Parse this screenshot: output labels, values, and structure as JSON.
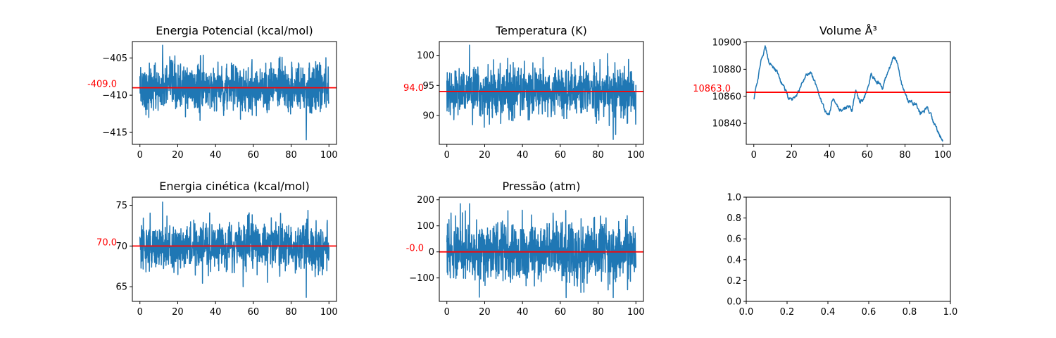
{
  "chart_data": [
    {
      "type": "line",
      "title": "Energia Potencial (kcal/mol)",
      "xlim": [
        -4,
        104
      ],
      "ylim": [
        -416.6,
        -402.8
      ],
      "xticks": [
        0,
        20,
        40,
        60,
        80,
        100
      ],
      "xtick_labels": [
        "0",
        "20",
        "40",
        "60",
        "80",
        "100"
      ],
      "yticks": [
        -405,
        -410,
        -415
      ],
      "ytick_labels": [
        "−405",
        "−410",
        "−415"
      ],
      "mean_line": -409.0,
      "mean_label": "-409.0",
      "series": [
        {
          "color": "#1f77b4",
          "x_range": [
            0,
            100
          ],
          "mean": -409.0,
          "spread": 1.6,
          "min": -416.0,
          "max": -403.3,
          "noise": "fluctuating"
        }
      ]
    },
    {
      "type": "line",
      "title": "Temperatura (K)",
      "xlim": [
        -4,
        104
      ],
      "ylim": [
        85.2,
        102.3
      ],
      "xticks": [
        0,
        20,
        40,
        60,
        80,
        100
      ],
      "xtick_labels": [
        "0",
        "20",
        "40",
        "60",
        "80",
        "100"
      ],
      "yticks": [
        90,
        95,
        100
      ],
      "ytick_labels": [
        "90",
        "95",
        "100"
      ],
      "mean_line": 94.0,
      "mean_label": "94.0",
      "series": [
        {
          "color": "#1f77b4",
          "x_range": [
            0,
            100
          ],
          "mean": 94.0,
          "spread": 2.0,
          "min": 86.0,
          "max": 101.7,
          "noise": "fluctuating"
        }
      ]
    },
    {
      "type": "line",
      "title": "Volume Å³",
      "xlim": [
        -4,
        104
      ],
      "ylim": [
        10824.5,
        10900.5
      ],
      "xticks": [
        0,
        20,
        40,
        60,
        80,
        100
      ],
      "xtick_labels": [
        "0",
        "20",
        "40",
        "60",
        "80",
        "100"
      ],
      "yticks": [
        10840,
        10860,
        10880,
        10900
      ],
      "ytick_labels": [
        "10840",
        "10860",
        "10880",
        "10900"
      ],
      "mean_line": 10863.0,
      "mean_label": "10863.0",
      "series": [
        {
          "color": "#1f77b4",
          "noise": "smooth",
          "anchors": [
            [
              0,
              10857
            ],
            [
              2,
              10872
            ],
            [
              4,
              10888
            ],
            [
              6,
              10896
            ],
            [
              8,
              10885
            ],
            [
              10,
              10882
            ],
            [
              12,
              10879
            ],
            [
              14,
              10872
            ],
            [
              16,
              10866
            ],
            [
              18,
              10860
            ],
            [
              20,
              10857
            ],
            [
              22,
              10860
            ],
            [
              24,
              10864
            ],
            [
              26,
              10872
            ],
            [
              28,
              10876
            ],
            [
              30,
              10878
            ],
            [
              32,
              10872
            ],
            [
              34,
              10863
            ],
            [
              36,
              10855
            ],
            [
              38,
              10848
            ],
            [
              40,
              10847
            ],
            [
              42,
              10860
            ],
            [
              44,
              10853
            ],
            [
              46,
              10849
            ],
            [
              48,
              10851
            ],
            [
              50,
              10853
            ],
            [
              52,
              10850
            ],
            [
              54,
              10864
            ],
            [
              56,
              10857
            ],
            [
              58,
              10856
            ],
            [
              60,
              10865
            ],
            [
              62,
              10876
            ],
            [
              64,
              10872
            ],
            [
              66,
              10870
            ],
            [
              68,
              10866
            ],
            [
              70,
              10875
            ],
            [
              72,
              10882
            ],
            [
              74,
              10889
            ],
            [
              76,
              10885
            ],
            [
              78,
              10870
            ],
            [
              80,
              10862
            ],
            [
              82,
              10856
            ],
            [
              84,
              10855
            ],
            [
              86,
              10853
            ],
            [
              88,
              10847
            ],
            [
              90,
              10849
            ],
            [
              92,
              10852
            ],
            [
              94,
              10845
            ],
            [
              96,
              10838
            ],
            [
              98,
              10832
            ],
            [
              100,
              10827
            ]
          ]
        }
      ]
    },
    {
      "type": "line",
      "title": "Energia cinética (kcal/mol)",
      "xlim": [
        -4,
        104
      ],
      "ylim": [
        63.2,
        76.0
      ],
      "xticks": [
        0,
        20,
        40,
        60,
        80,
        100
      ],
      "xtick_labels": [
        "0",
        "20",
        "40",
        "60",
        "80",
        "100"
      ],
      "yticks": [
        65,
        70,
        75
      ],
      "ytick_labels": [
        "65",
        "70",
        "75"
      ],
      "mean_line": 70.0,
      "mean_label": "70.0",
      "series": [
        {
          "color": "#1f77b4",
          "x_range": [
            0,
            100
          ],
          "mean": 70.0,
          "spread": 1.5,
          "min": 63.7,
          "max": 75.4,
          "noise": "fluctuating"
        }
      ]
    },
    {
      "type": "line",
      "title": "Pressão (atm)",
      "xlim": [
        -4,
        104
      ],
      "ylim": [
        -190,
        210
      ],
      "xticks": [
        0,
        20,
        40,
        60,
        80,
        100
      ],
      "xtick_labels": [
        "0",
        "20",
        "40",
        "60",
        "80",
        "100"
      ],
      "yticks": [
        -100,
        0,
        100,
        200
      ],
      "ytick_labels": [
        "−100",
        "0",
        "100",
        "200"
      ],
      "mean_line": 0.0,
      "mean_label": "-0.0",
      "series": [
        {
          "color": "#1f77b4",
          "x_range": [
            0,
            100
          ],
          "mean": 0.0,
          "spread": 55,
          "min": -175,
          "max": 185,
          "noise": "fluctuating"
        }
      ]
    },
    {
      "type": "line",
      "title": "",
      "xlim": [
        0,
        1
      ],
      "ylim": [
        0,
        1
      ],
      "xticks": [
        0,
        0.2,
        0.4,
        0.6,
        0.8,
        1.0
      ],
      "xtick_labels": [
        "0.0",
        "0.2",
        "0.4",
        "0.6",
        "0.8",
        "1.0"
      ],
      "yticks": [
        0,
        0.2,
        0.4,
        0.6,
        0.8,
        1.0
      ],
      "ytick_labels": [
        "0.0",
        "0.2",
        "0.4",
        "0.6",
        "0.8",
        "1.0"
      ],
      "series": []
    }
  ]
}
